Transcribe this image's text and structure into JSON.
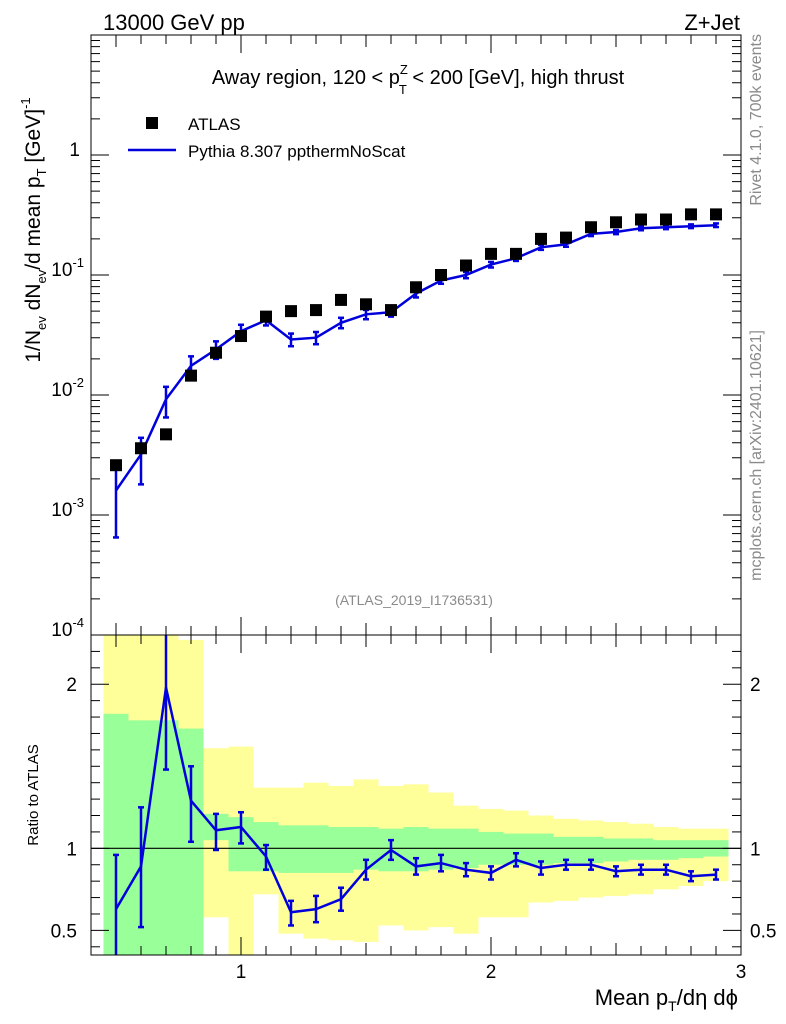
{
  "header": {
    "left": "13000 GeV pp",
    "right": "Z+Jet"
  },
  "side": {
    "rivet": "Rivet 4.1.0,  700k events",
    "mcplots": "mcplots.cern.ch [arXiv:2401.10621]"
  },
  "colors": {
    "mc": "#0000dd",
    "data": "#000000",
    "band_green": "#99ff99",
    "band_yellow": "#ffff99"
  },
  "chart_data": [
    {
      "type": "scatter",
      "title": "Away region, 120 < p_T^Z < 200 [GeV], high thrust",
      "title_parts": {
        "a": "Away region, 120 < p",
        "sup": "Z",
        "sub": "T",
        "b": " < 200 [GeV], high thrust"
      },
      "ylabel": "1/N_ev dN_ev/d mean p_T [GeV]^-1",
      "ylabel_parts": {
        "a": "1/N",
        "sub1": "ev",
        "b": " dN",
        "sub2": "ev",
        "c": "/d mean p",
        "sub3": "T",
        "d": " [GeV]",
        "sup": "-1"
      },
      "yscale": "log",
      "ylim": [
        0.0001,
        10
      ],
      "xlim": [
        0.4,
        3.0
      ],
      "ytick_labels": [
        {
          "base": "10",
          "exp": "-4",
          "value": 0.0001
        },
        {
          "base": "10",
          "exp": "-3",
          "value": 0.001
        },
        {
          "base": "10",
          "exp": "-2",
          "value": 0.01
        },
        {
          "base": "10",
          "exp": "-1",
          "value": 0.1
        },
        {
          "base": "1",
          "exp": "",
          "value": 1
        }
      ],
      "watermark": "(ATLAS_2019_I1736531)",
      "legend": {
        "data_label": "ATLAS",
        "mc_label": "Pythia 8.307 ppthermNoScat",
        "position": "top-left"
      },
      "x": [
        0.5,
        0.6,
        0.7,
        0.8,
        0.9,
        1.0,
        1.1,
        1.2,
        1.3,
        1.4,
        1.5,
        1.6,
        1.7,
        1.8,
        1.9,
        2.0,
        2.1,
        2.2,
        2.3,
        2.4,
        2.5,
        2.6,
        2.7,
        2.8,
        2.9
      ],
      "series": [
        {
          "name": "ATLAS",
          "values": [
            0.0026,
            0.0036,
            0.0047,
            0.0145,
            0.0225,
            0.031,
            0.045,
            0.05,
            0.051,
            0.062,
            0.057,
            0.051,
            0.079,
            0.1,
            0.12,
            0.15,
            0.15,
            0.2,
            0.205,
            0.25,
            0.275,
            0.29,
            0.29,
            0.32,
            0.32
          ]
        },
        {
          "name": "Pythia 8.307 ppthermNoScat",
          "values": [
            0.0016,
            0.0032,
            0.0092,
            0.0175,
            0.024,
            0.034,
            0.042,
            0.029,
            0.03,
            0.04,
            0.047,
            0.049,
            0.07,
            0.09,
            0.1,
            0.122,
            0.138,
            0.17,
            0.18,
            0.22,
            0.228,
            0.245,
            0.25,
            0.255,
            0.26
          ],
          "err_low": [
            0.00095,
            0.0014,
            0.0027,
            0.0035,
            0.004,
            0.0045,
            0.004,
            0.0035,
            0.0035,
            0.004,
            0.0042,
            0.004,
            0.005,
            0.0055,
            0.006,
            0.0065,
            0.007,
            0.008,
            0.008,
            0.009,
            0.009,
            0.009,
            0.009,
            0.009,
            0.009
          ],
          "err_high": [
            0.0009,
            0.0012,
            0.0025,
            0.0035,
            0.004,
            0.0045,
            0.004,
            0.0035,
            0.0035,
            0.004,
            0.0042,
            0.004,
            0.005,
            0.0055,
            0.006,
            0.0065,
            0.007,
            0.008,
            0.008,
            0.009,
            0.009,
            0.009,
            0.009,
            0.009,
            0.009
          ]
        }
      ]
    },
    {
      "type": "line",
      "ylabel": "Ratio to ATLAS",
      "xlabel": "Mean p_T/dη dϕ",
      "xlabel_parts": {
        "a": "Mean p",
        "sub": "T",
        "b": "/dη dϕ"
      },
      "ylim": [
        0.35,
        2.3
      ],
      "xlim": [
        0.4,
        3.0
      ],
      "y_ticks": [
        0.5,
        1,
        2
      ],
      "y_tick_labels": [
        "0.5",
        "1",
        "2"
      ],
      "x_ticks": [
        1,
        2,
        3
      ],
      "x_tick_labels": [
        "1",
        "2",
        "3"
      ],
      "bins": [
        [
          0.45,
          0.55
        ],
        [
          0.55,
          0.65
        ],
        [
          0.65,
          0.75
        ],
        [
          0.75,
          0.85
        ],
        [
          0.85,
          0.95
        ],
        [
          0.95,
          1.05
        ],
        [
          1.05,
          1.15
        ],
        [
          1.15,
          1.25
        ],
        [
          1.25,
          1.35
        ],
        [
          1.35,
          1.45
        ],
        [
          1.45,
          1.55
        ],
        [
          1.55,
          1.65
        ],
        [
          1.65,
          1.75
        ],
        [
          1.75,
          1.85
        ],
        [
          1.85,
          1.95
        ],
        [
          1.95,
          2.05
        ],
        [
          2.05,
          2.15
        ],
        [
          2.15,
          2.25
        ],
        [
          2.25,
          2.35
        ],
        [
          2.35,
          2.45
        ],
        [
          2.45,
          2.55
        ],
        [
          2.55,
          2.65
        ],
        [
          2.65,
          2.75
        ],
        [
          2.75,
          2.85
        ],
        [
          2.85,
          2.95
        ]
      ],
      "band_stat": [
        [
          0.3,
          1.82
        ],
        [
          0.3,
          1.78
        ],
        [
          0.3,
          1.78
        ],
        [
          0.3,
          1.73
        ],
        [
          1.05,
          1.21
        ],
        [
          0.86,
          1.19
        ],
        [
          0.86,
          1.16
        ],
        [
          0.85,
          1.14
        ],
        [
          0.85,
          1.14
        ],
        [
          0.85,
          1.13
        ],
        [
          0.87,
          1.13
        ],
        [
          0.86,
          1.12
        ],
        [
          0.86,
          1.13
        ],
        [
          0.87,
          1.12
        ],
        [
          0.88,
          1.12
        ],
        [
          0.9,
          1.1
        ],
        [
          0.9,
          1.09
        ],
        [
          0.9,
          1.09
        ],
        [
          0.91,
          1.07
        ],
        [
          0.91,
          1.07
        ],
        [
          0.92,
          1.06
        ],
        [
          0.93,
          1.06
        ],
        [
          0.93,
          1.05
        ],
        [
          0.94,
          1.05
        ],
        [
          0.95,
          1.05
        ]
      ],
      "band_total": [
        [
          0.3,
          2.3
        ],
        [
          0.3,
          2.3
        ],
        [
          0.3,
          2.3
        ],
        [
          0.3,
          2.27
        ],
        [
          0.58,
          1.61
        ],
        [
          0.33,
          1.62
        ],
        [
          0.72,
          1.37
        ],
        [
          0.48,
          1.37
        ],
        [
          0.45,
          1.4
        ],
        [
          0.44,
          1.38
        ],
        [
          0.43,
          1.42
        ],
        [
          0.53,
          1.38
        ],
        [
          0.5,
          1.39
        ],
        [
          0.52,
          1.34
        ],
        [
          0.48,
          1.26
        ],
        [
          0.58,
          1.24
        ],
        [
          0.58,
          1.23
        ],
        [
          0.67,
          1.2
        ],
        [
          0.68,
          1.18
        ],
        [
          0.7,
          1.17
        ],
        [
          0.71,
          1.16
        ],
        [
          0.72,
          1.15
        ],
        [
          0.75,
          1.13
        ],
        [
          0.77,
          1.12
        ],
        [
          0.8,
          1.12
        ]
      ],
      "series": [
        {
          "name": "Pythia 8.307 ppthermNoScat / ATLAS",
          "values": [
            0.63,
            0.89,
            1.98,
            1.29,
            1.11,
            1.13,
            0.95,
            0.61,
            0.63,
            0.69,
            0.87,
            0.99,
            0.89,
            0.91,
            0.87,
            0.85,
            0.93,
            0.88,
            0.9,
            0.9,
            0.86,
            0.87,
            0.87,
            0.83,
            0.84
          ],
          "err_low": [
            0.36,
            0.37,
            0.5,
            0.25,
            0.12,
            0.1,
            0.08,
            0.08,
            0.08,
            0.07,
            0.06,
            0.06,
            0.05,
            0.05,
            0.04,
            0.04,
            0.04,
            0.04,
            0.03,
            0.03,
            0.03,
            0.03,
            0.03,
            0.03,
            0.03
          ],
          "err_high": [
            0.33,
            0.36,
            0.4,
            0.21,
            0.1,
            0.09,
            0.07,
            0.07,
            0.08,
            0.07,
            0.06,
            0.06,
            0.05,
            0.05,
            0.04,
            0.04,
            0.04,
            0.04,
            0.03,
            0.03,
            0.03,
            0.03,
            0.03,
            0.03,
            0.03
          ]
        }
      ]
    }
  ]
}
